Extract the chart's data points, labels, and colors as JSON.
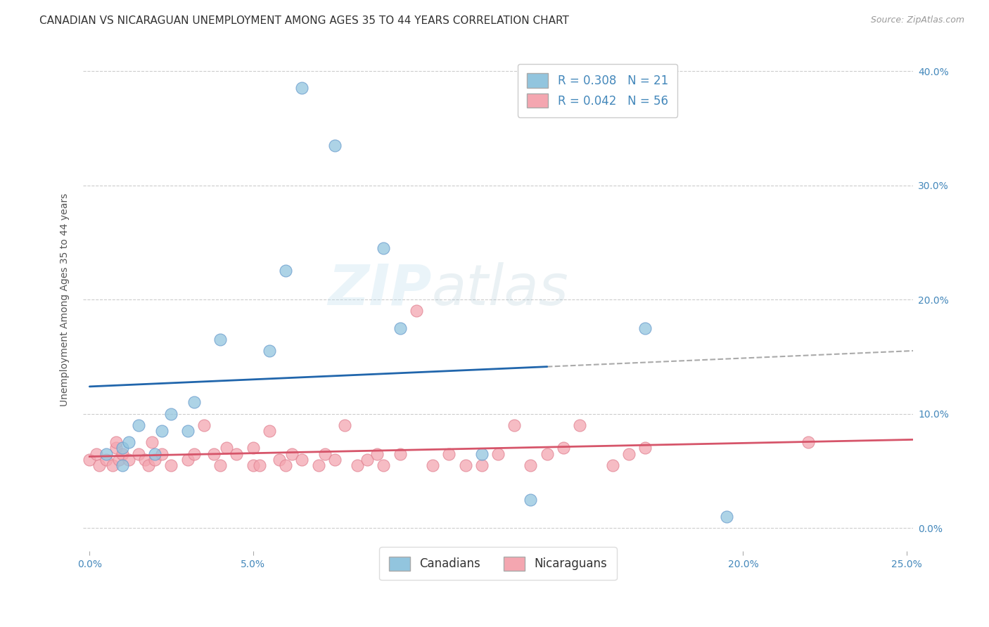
{
  "title": "CANADIAN VS NICARAGUAN UNEMPLOYMENT AMONG AGES 35 TO 44 YEARS CORRELATION CHART",
  "source": "Source: ZipAtlas.com",
  "ylabel": "Unemployment Among Ages 35 to 44 years",
  "xlim": [
    0.0,
    0.25
  ],
  "ylim": [
    -0.02,
    0.42
  ],
  "xticks": [
    0.0,
    0.05,
    0.1,
    0.15,
    0.2,
    0.25
  ],
  "yticks": [
    0.0,
    0.1,
    0.2,
    0.3,
    0.4
  ],
  "canadian_color": "#92c5de",
  "nicaraguan_color": "#f4a6b0",
  "canadian_line_color": "#2166ac",
  "nicaraguan_line_color": "#d6556a",
  "dashed_line_color": "#aaaaaa",
  "background_color": "#ffffff",
  "watermark_zip": "ZIP",
  "watermark_atlas": "atlas",
  "canadians_x": [
    0.005,
    0.01,
    0.01,
    0.012,
    0.015,
    0.02,
    0.022,
    0.025,
    0.03,
    0.032,
    0.04,
    0.055,
    0.06,
    0.065,
    0.075,
    0.09,
    0.095,
    0.12,
    0.135,
    0.17,
    0.195
  ],
  "canadians_y": [
    0.065,
    0.055,
    0.07,
    0.075,
    0.09,
    0.065,
    0.085,
    0.1,
    0.085,
    0.11,
    0.165,
    0.155,
    0.225,
    0.385,
    0.335,
    0.245,
    0.175,
    0.065,
    0.025,
    0.175,
    0.01
  ],
  "nicaraguans_x": [
    0.0,
    0.002,
    0.003,
    0.005,
    0.007,
    0.008,
    0.008,
    0.009,
    0.01,
    0.012,
    0.015,
    0.017,
    0.018,
    0.019,
    0.02,
    0.022,
    0.025,
    0.03,
    0.032,
    0.035,
    0.038,
    0.04,
    0.042,
    0.045,
    0.05,
    0.05,
    0.052,
    0.055,
    0.058,
    0.06,
    0.062,
    0.065,
    0.07,
    0.072,
    0.075,
    0.078,
    0.082,
    0.085,
    0.088,
    0.09,
    0.095,
    0.1,
    0.105,
    0.11,
    0.115,
    0.12,
    0.125,
    0.13,
    0.135,
    0.14,
    0.145,
    0.15,
    0.16,
    0.165,
    0.17,
    0.22
  ],
  "nicaraguans_y": [
    0.06,
    0.065,
    0.055,
    0.06,
    0.055,
    0.07,
    0.075,
    0.06,
    0.065,
    0.06,
    0.065,
    0.06,
    0.055,
    0.075,
    0.06,
    0.065,
    0.055,
    0.06,
    0.065,
    0.09,
    0.065,
    0.055,
    0.07,
    0.065,
    0.055,
    0.07,
    0.055,
    0.085,
    0.06,
    0.055,
    0.065,
    0.06,
    0.055,
    0.065,
    0.06,
    0.09,
    0.055,
    0.06,
    0.065,
    0.055,
    0.065,
    0.19,
    0.055,
    0.065,
    0.055,
    0.055,
    0.065,
    0.09,
    0.055,
    0.065,
    0.07,
    0.09,
    0.055,
    0.065,
    0.07,
    0.075
  ],
  "title_fontsize": 11,
  "source_fontsize": 9,
  "ylabel_fontsize": 10,
  "tick_fontsize": 10,
  "legend_fontsize": 12
}
